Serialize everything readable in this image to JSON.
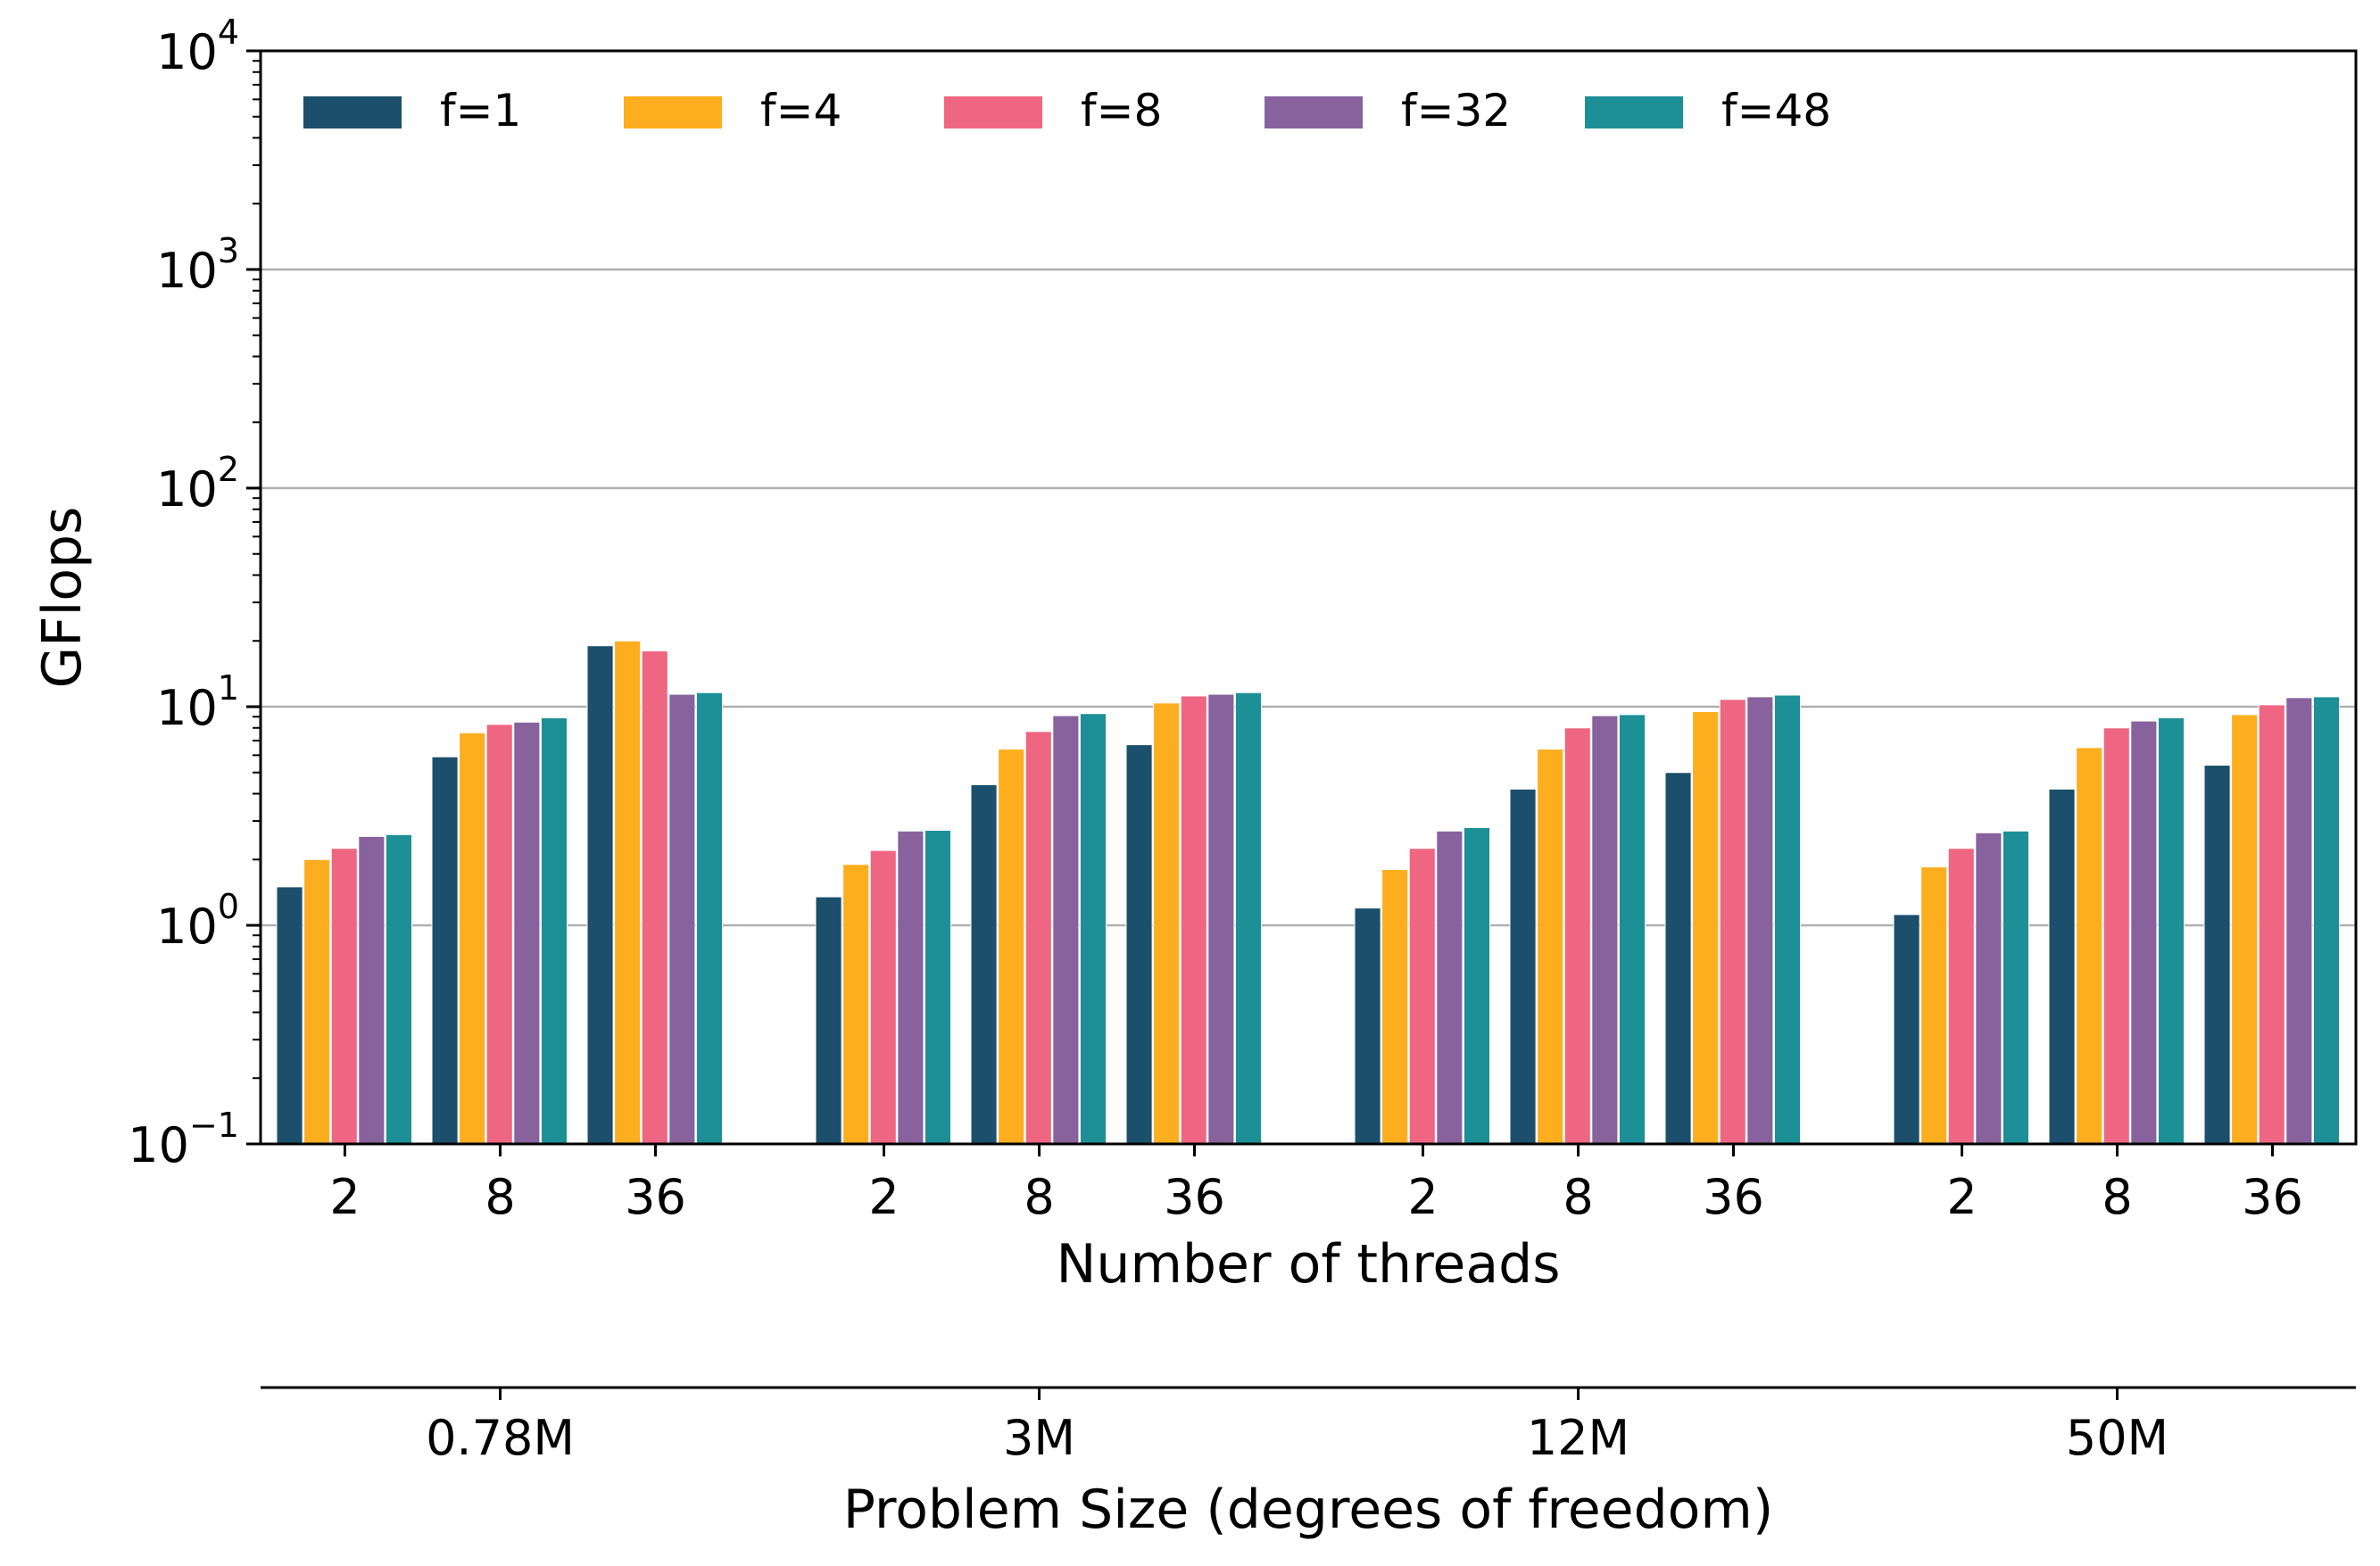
{
  "chart_data": {
    "type": "bar",
    "title": "",
    "ylabel": "GFlops",
    "xlabel": "Number of threads",
    "xlabel2": "Problem Size (degrees of freedom)",
    "yscale": "log",
    "ylim": [
      0.1,
      10000
    ],
    "yticks": [
      0.1,
      1,
      10,
      100,
      1000,
      10000
    ],
    "ytick_labels": [
      {
        "base": "10",
        "exp": "−1"
      },
      {
        "base": "10",
        "exp": "0"
      },
      {
        "base": "10",
        "exp": "1"
      },
      {
        "base": "10",
        "exp": "2"
      },
      {
        "base": "10",
        "exp": "3"
      },
      {
        "base": "10",
        "exp": "4"
      }
    ],
    "grid": "horizontal",
    "legend_position": "top-left",
    "groups": [
      "0.78M",
      "3M",
      "12M",
      "50M"
    ],
    "threads": [
      "2",
      "8",
      "36"
    ],
    "series": [
      {
        "name": "f=1",
        "color": "#1b4f6b",
        "values": [
          [
            1.5,
            5.9,
            19.0
          ],
          [
            1.35,
            4.4,
            6.7
          ],
          [
            1.2,
            4.2,
            5.0
          ],
          [
            1.12,
            4.2,
            5.4
          ]
        ]
      },
      {
        "name": "f=4",
        "color": "#fdae1f",
        "values": [
          [
            2.0,
            7.6,
            20.0
          ],
          [
            1.9,
            6.4,
            10.4
          ],
          [
            1.8,
            6.4,
            9.5
          ],
          [
            1.85,
            6.5,
            9.2
          ]
        ]
      },
      {
        "name": "f=8",
        "color": "#ef6682",
        "values": [
          [
            2.25,
            8.3,
            18.0
          ],
          [
            2.2,
            7.7,
            11.2
          ],
          [
            2.25,
            8.0,
            10.8
          ],
          [
            2.25,
            8.0,
            10.2
          ]
        ]
      },
      {
        "name": "f=32",
        "color": "#87629d",
        "values": [
          [
            2.55,
            8.5,
            11.4
          ],
          [
            2.7,
            9.1,
            11.4
          ],
          [
            2.7,
            9.1,
            11.1
          ],
          [
            2.65,
            8.6,
            11.0
          ]
        ]
      },
      {
        "name": "f=48",
        "color": "#1d8f96",
        "values": [
          [
            2.6,
            8.9,
            11.6
          ],
          [
            2.72,
            9.3,
            11.6
          ],
          [
            2.8,
            9.2,
            11.3
          ],
          [
            2.7,
            8.9,
            11.1
          ]
        ]
      }
    ]
  }
}
